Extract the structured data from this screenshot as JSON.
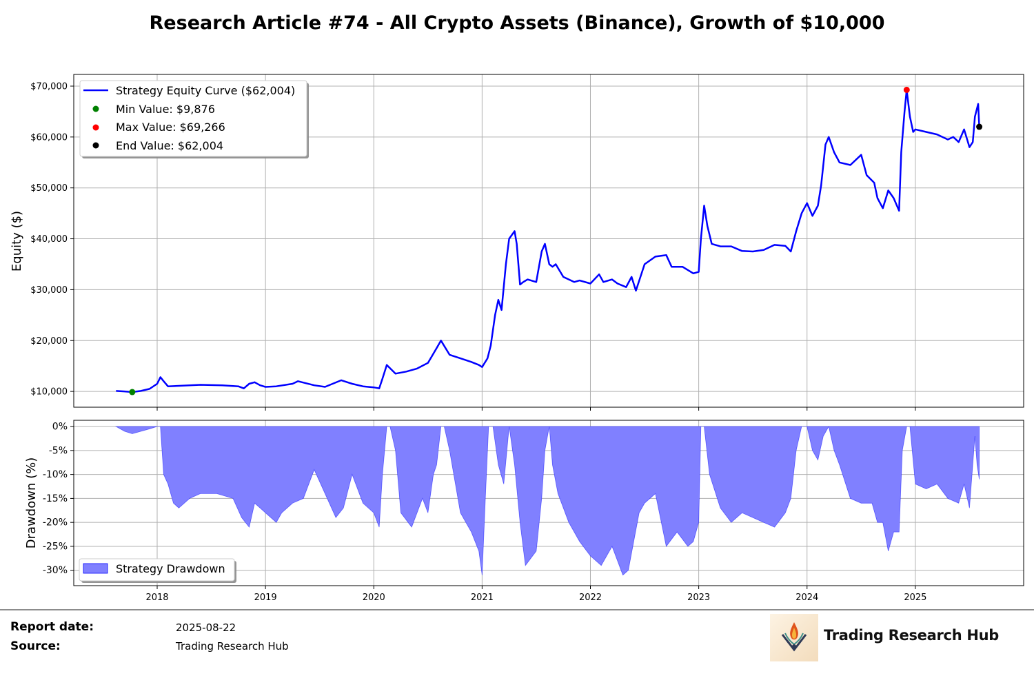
{
  "title": "Research Article #74 - All Crypto Assets (Binance), Growth of $10,000",
  "footer": {
    "report_date_label": "Report date:",
    "report_date_value": "2025-08-22",
    "source_label": "Source:",
    "source_value": "Trading Research Hub",
    "brand_name": "Trading Research Hub"
  },
  "colors": {
    "equity": "#0000ff",
    "drawdown_fill": "#8080ff",
    "min_marker": "#008000",
    "max_marker": "#ff0000",
    "end_marker": "#000000",
    "grid": "#b0b0b0"
  },
  "chart_data": [
    {
      "type": "line",
      "ylabel": "Equity ($)",
      "xlim": [
        2017.23,
        2026.0
      ],
      "ylim": [
        6900,
        72300
      ],
      "y_ticks": [
        10000,
        20000,
        30000,
        40000,
        50000,
        60000,
        70000
      ],
      "y_tick_labels": [
        "$10,000",
        "$20,000",
        "$30,000",
        "$40,000",
        "$50,000",
        "$60,000",
        "$70,000"
      ],
      "x_ticks": [
        2018,
        2019,
        2020,
        2021,
        2022,
        2023,
        2024,
        2025
      ],
      "x_tick_labels": [
        "2018",
        "2019",
        "2020",
        "2021",
        "2022",
        "2023",
        "2024",
        "2025"
      ],
      "grid": true,
      "legend_position": "top-left",
      "legend": [
        "Strategy Equity Curve ($62,004)",
        "Min Value: $9,876",
        "Max Value: $69,266",
        "End Value: $62,004"
      ],
      "markers": {
        "min": {
          "x": 2017.77,
          "y": 9876
        },
        "max": {
          "x": 2024.92,
          "y": 69266
        },
        "end": {
          "x": 2025.59,
          "y": 62004
        }
      },
      "series": [
        {
          "name": "Strategy Equity Curve ($62,004)",
          "x": [
            2017.62,
            2017.7,
            2017.77,
            2017.85,
            2017.93,
            2018.0,
            2018.03,
            2018.06,
            2018.1,
            2018.2,
            2018.4,
            2018.6,
            2018.75,
            2018.8,
            2018.85,
            2018.9,
            2018.95,
            2019.0,
            2019.1,
            2019.25,
            2019.3,
            2019.45,
            2019.55,
            2019.7,
            2019.8,
            2019.9,
            2020.0,
            2020.05,
            2020.08,
            2020.12,
            2020.2,
            2020.3,
            2020.4,
            2020.5,
            2020.58,
            2020.62,
            2020.7,
            2020.8,
            2020.9,
            2020.97,
            2021.0,
            2021.05,
            2021.08,
            2021.12,
            2021.15,
            2021.18,
            2021.22,
            2021.25,
            2021.3,
            2021.32,
            2021.35,
            2021.38,
            2021.42,
            2021.5,
            2021.55,
            2021.58,
            2021.62,
            2021.65,
            2021.68,
            2021.75,
            2021.85,
            2021.9,
            2022.0,
            2022.08,
            2022.12,
            2022.2,
            2022.25,
            2022.33,
            2022.38,
            2022.42,
            2022.5,
            2022.6,
            2022.7,
            2022.75,
            2022.85,
            2022.95,
            2023.0,
            2023.02,
            2023.05,
            2023.08,
            2023.12,
            2023.2,
            2023.3,
            2023.4,
            2023.5,
            2023.6,
            2023.7,
            2023.8,
            2023.85,
            2023.9,
            2023.95,
            2024.0,
            2024.05,
            2024.1,
            2024.13,
            2024.17,
            2024.2,
            2024.25,
            2024.3,
            2024.4,
            2024.5,
            2024.55,
            2024.62,
            2024.65,
            2024.7,
            2024.75,
            2024.8,
            2024.85,
            2024.87,
            2024.9,
            2024.92,
            2024.95,
            2024.98,
            2025.0,
            2025.1,
            2025.2,
            2025.3,
            2025.35,
            2025.4,
            2025.45,
            2025.5,
            2025.53,
            2025.55,
            2025.58,
            2025.59
          ],
          "y": [
            10100,
            10000,
            9876,
            10100,
            10500,
            11500,
            12800,
            12000,
            11000,
            11100,
            11300,
            11200,
            11000,
            10600,
            11500,
            11800,
            11200,
            10900,
            11000,
            11500,
            12000,
            11200,
            10900,
            12200,
            11500,
            11000,
            10800,
            10600,
            12500,
            15200,
            13500,
            13900,
            14500,
            15600,
            18500,
            20000,
            17200,
            16500,
            15800,
            15200,
            14800,
            16500,
            19000,
            25000,
            28000,
            26000,
            35000,
            40000,
            41500,
            39000,
            31000,
            31500,
            32000,
            31500,
            37500,
            39000,
            35000,
            34500,
            35000,
            32500,
            31500,
            31800,
            31200,
            33000,
            31500,
            32000,
            31200,
            30500,
            32500,
            29800,
            35000,
            36500,
            36800,
            34500,
            34500,
            33200,
            33500,
            40000,
            46500,
            42500,
            39000,
            38500,
            38500,
            37600,
            37500,
            37800,
            38800,
            38600,
            37500,
            41500,
            45000,
            47000,
            44500,
            46500,
            50500,
            58500,
            60000,
            57000,
            55000,
            54500,
            56500,
            52500,
            51000,
            48000,
            46000,
            49500,
            48000,
            45500,
            57000,
            65000,
            69266,
            64000,
            61000,
            61500,
            61000,
            60500,
            59500,
            60000,
            59000,
            61500,
            58000,
            59000,
            64000,
            66500,
            62004
          ]
        }
      ]
    },
    {
      "type": "area",
      "ylabel": "Drawdown (%)",
      "xlim": [
        2017.23,
        2026.0
      ],
      "ylim": [
        -33.2,
        1.3
      ],
      "y_ticks": [
        0,
        -5,
        -10,
        -15,
        -20,
        -25,
        -30
      ],
      "y_tick_labels": [
        "0%",
        "-5%",
        "-10%",
        "-15%",
        "-20%",
        "-25%",
        "-30%"
      ],
      "x_ticks": [
        2018,
        2019,
        2020,
        2021,
        2022,
        2023,
        2024,
        2025
      ],
      "x_tick_labels": [
        "2018",
        "2019",
        "2020",
        "2021",
        "2022",
        "2023",
        "2024",
        "2025"
      ],
      "grid": true,
      "legend_position": "bottom-left",
      "legend": [
        "Strategy Drawdown"
      ],
      "series": [
        {
          "name": "Strategy Drawdown",
          "x": [
            2017.62,
            2017.7,
            2017.77,
            2017.85,
            2017.93,
            2018.0,
            2018.03,
            2018.06,
            2018.1,
            2018.15,
            2018.2,
            2018.3,
            2018.4,
            2018.55,
            2018.7,
            2018.78,
            2018.85,
            2018.9,
            2018.95,
            2019.0,
            2019.1,
            2019.15,
            2019.25,
            2019.35,
            2019.45,
            2019.55,
            2019.65,
            2019.72,
            2019.8,
            2019.9,
            2020.0,
            2020.05,
            2020.08,
            2020.12,
            2020.15,
            2020.2,
            2020.25,
            2020.35,
            2020.45,
            2020.5,
            2020.55,
            2020.58,
            2020.62,
            2020.65,
            2020.7,
            2020.8,
            2020.9,
            2020.97,
            2021.0,
            2021.03,
            2021.06,
            2021.1,
            2021.15,
            2021.2,
            2021.25,
            2021.3,
            2021.35,
            2021.4,
            2021.5,
            2021.55,
            2021.58,
            2021.62,
            2021.65,
            2021.7,
            2021.8,
            2021.9,
            2022.0,
            2022.1,
            2022.2,
            2022.3,
            2022.35,
            2022.4,
            2022.45,
            2022.5,
            2022.6,
            2022.7,
            2022.8,
            2022.9,
            2022.95,
            2023.0,
            2023.02,
            2023.05,
            2023.1,
            2023.2,
            2023.3,
            2023.4,
            2023.5,
            2023.6,
            2023.7,
            2023.8,
            2023.85,
            2023.9,
            2023.95,
            2024.0,
            2024.05,
            2024.1,
            2024.15,
            2024.2,
            2024.25,
            2024.3,
            2024.4,
            2024.5,
            2024.6,
            2024.65,
            2024.7,
            2024.75,
            2024.8,
            2024.85,
            2024.88,
            2024.92,
            2024.95,
            2025.0,
            2025.1,
            2025.2,
            2025.3,
            2025.4,
            2025.45,
            2025.5,
            2025.55,
            2025.57,
            2025.59
          ],
          "y": [
            0,
            -1,
            -1.5,
            -1,
            -0.5,
            0,
            0,
            -10,
            -12,
            -16,
            -17,
            -15,
            -14,
            -14,
            -15,
            -19,
            -21,
            -16,
            -17,
            -18,
            -20,
            -18,
            -16,
            -15,
            -9,
            -14,
            -19,
            -17,
            -10,
            -16,
            -18,
            -21,
            -10,
            0,
            0,
            -5,
            -18,
            -21,
            -15,
            -18,
            -10,
            -8,
            0,
            0,
            -5,
            -18,
            -22,
            -26,
            -31,
            -15,
            0,
            0,
            -8,
            -12,
            0,
            -8,
            -20,
            -29,
            -26,
            -15,
            -5,
            0,
            -8,
            -14,
            -20,
            -24,
            -27,
            -29,
            -25,
            -31,
            -30,
            -24,
            -18,
            -16,
            -14,
            -25,
            -22,
            -25,
            -24,
            -20,
            0,
            0,
            -10,
            -17,
            -20,
            -18,
            -19,
            -20,
            -21,
            -18,
            -15,
            -5,
            0,
            0,
            -5,
            -7,
            -2,
            0,
            -5,
            -8,
            -15,
            -16,
            -16,
            -20,
            -20,
            -26,
            -22,
            -22,
            -5,
            0,
            0,
            -12,
            -13,
            -12,
            -15,
            -16,
            -12,
            -17,
            -2,
            -8,
            -11
          ]
        }
      ]
    }
  ]
}
